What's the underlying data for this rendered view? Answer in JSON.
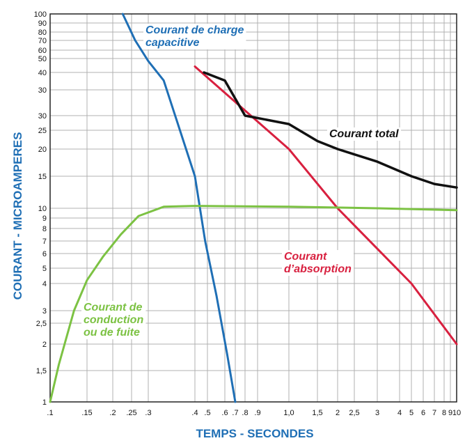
{
  "chart_data": {
    "type": "line",
    "xlabel": "TEMPS - SECONDES",
    "ylabel": "COURANT - MICROAMPERES",
    "x_tick_labels": [
      ".1",
      ".15",
      ".2",
      ".25",
      ".3",
      ".4",
      ".5",
      ".6",
      ".7",
      ".8",
      ".9",
      "1,0",
      "1,5",
      "2",
      "2,5",
      "3",
      "4",
      "5",
      "6",
      "7",
      "8",
      "9",
      "10"
    ],
    "y_tick_labels": [
      "1",
      "1,5",
      "2",
      "2,5",
      "3",
      "4",
      "5",
      "6",
      "7",
      "8",
      "9",
      "10",
      "15",
      "20",
      "25",
      "30",
      "30",
      "40",
      "50",
      "60",
      "70",
      "80",
      "90",
      "100"
    ],
    "grid": true,
    "series": [
      {
        "name": "Courant de charge capacitive",
        "color": "#1f6fb5",
        "points": [
          [
            0.225,
            100
          ],
          [
            0.26,
            70
          ],
          [
            0.3,
            48
          ],
          [
            0.33,
            35
          ],
          [
            0.4,
            15
          ],
          [
            0.48,
            7
          ],
          [
            0.55,
            3.5
          ],
          [
            0.62,
            1.8
          ],
          [
            0.7,
            1
          ]
        ]
      },
      {
        "name": "Courant d'absorption",
        "color": "#d8203f",
        "points": [
          [
            0.4,
            44
          ],
          [
            1.0,
            20
          ],
          [
            2.0,
            10
          ],
          [
            5.0,
            4
          ],
          [
            10,
            2
          ]
        ]
      },
      {
        "name": "Courant total",
        "color": "#111111",
        "points": [
          [
            0.47,
            40
          ],
          [
            0.6,
            35
          ],
          [
            0.8,
            30
          ],
          [
            1.0,
            27
          ],
          [
            1.5,
            22
          ],
          [
            2.0,
            20
          ],
          [
            3.0,
            17.5
          ],
          [
            5.0,
            15
          ],
          [
            7.0,
            13.6
          ],
          [
            10,
            13
          ]
        ]
      },
      {
        "name": "Courant de conduction ou de fuite",
        "color": "#7cc243",
        "points": [
          [
            0.1,
            1
          ],
          [
            0.11,
            1.6
          ],
          [
            0.13,
            3
          ],
          [
            0.15,
            4.2
          ],
          [
            0.18,
            5.8
          ],
          [
            0.22,
            7.5
          ],
          [
            0.27,
            9.2
          ],
          [
            0.33,
            10.2
          ],
          [
            0.4,
            10.3
          ],
          [
            1.0,
            10.2
          ],
          [
            3.0,
            10
          ],
          [
            10,
            9.8
          ]
        ]
      }
    ],
    "annotations": {
      "capacitive": [
        "Courant  de  charge",
        "capacitive"
      ],
      "absorption": [
        "Courant",
        "d’absorption"
      ],
      "total": [
        "Courant total"
      ],
      "conduction": [
        "Courant  de",
        "conduction",
        "ou de fuite"
      ]
    }
  }
}
